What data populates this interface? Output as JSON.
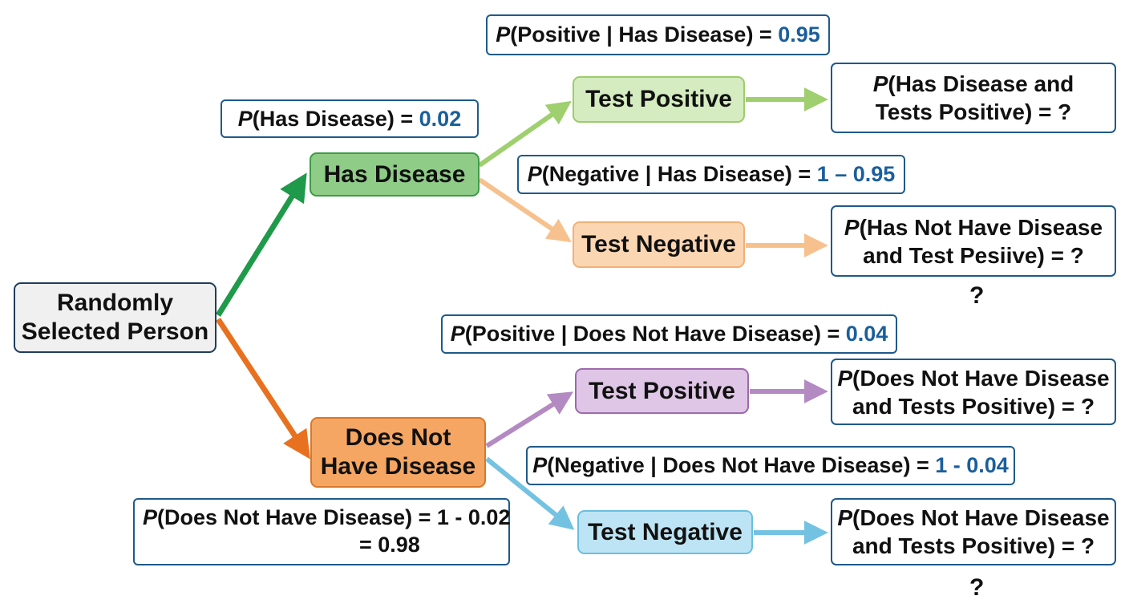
{
  "colors": {
    "green_dark": "#1f9a4a",
    "orange_dark": "#e8711f",
    "green_light": "#9fcf6e",
    "orange_light": "#f7c18e",
    "purple": "#b48ac2",
    "blue_light": "#74c2e2",
    "value_blue": "#1a5f9c",
    "label_border": "#1e5a8a"
  },
  "nodes": {
    "root": {
      "line1": "Randomly",
      "line2": "Selected Person"
    },
    "has_disease": "Has Disease",
    "no_disease": {
      "line1": "Does Not",
      "line2": "Have Disease"
    },
    "test_pos_1": "Test Positive",
    "test_neg_1": "Test Negative",
    "test_pos_2": "Test Positive",
    "test_neg_2": "Test Negative"
  },
  "labels": {
    "p_has": {
      "p": "P",
      "text": "(Has Disease) = ",
      "value": "0.02"
    },
    "p_not": {
      "p": "P",
      "line1": "(Does Not Have Disease) = 1 - 0.02",
      "line2": "= 0.98"
    },
    "p_pos_has": {
      "p": "P",
      "text": "(Positive | Has Disease) = ",
      "value": "0.95"
    },
    "p_neg_has": {
      "p": "P",
      "text": "(Negative | Has Disease) = ",
      "value": "1 – 0.95"
    },
    "p_pos_not": {
      "p": "P",
      "text": "(Positive | Does Not Have Disease) = ",
      "value": "0.04"
    },
    "p_neg_not": {
      "p": "P",
      "text": "(Negative | Does Not Have Disease) = ",
      "value": "1 - 0.04"
    }
  },
  "results": {
    "r1": {
      "p": "P",
      "line1": "(Has Disease and",
      "line2": "Tests Positive) = ?"
    },
    "r2": {
      "p": "P",
      "line1": "(Has Not Have Disease",
      "line2": "and Test Pesiive) = ?"
    },
    "r3": {
      "p": "P",
      "line1": "(Does Not Have Disease",
      "line2": "and Tests Positive) = ?"
    },
    "r4": {
      "p": "P",
      "line1": "(Does Not Have Disease",
      "line2": "and Tests Positive) = ?"
    }
  },
  "question_marks": {
    "q1": "?",
    "q2": "?"
  }
}
